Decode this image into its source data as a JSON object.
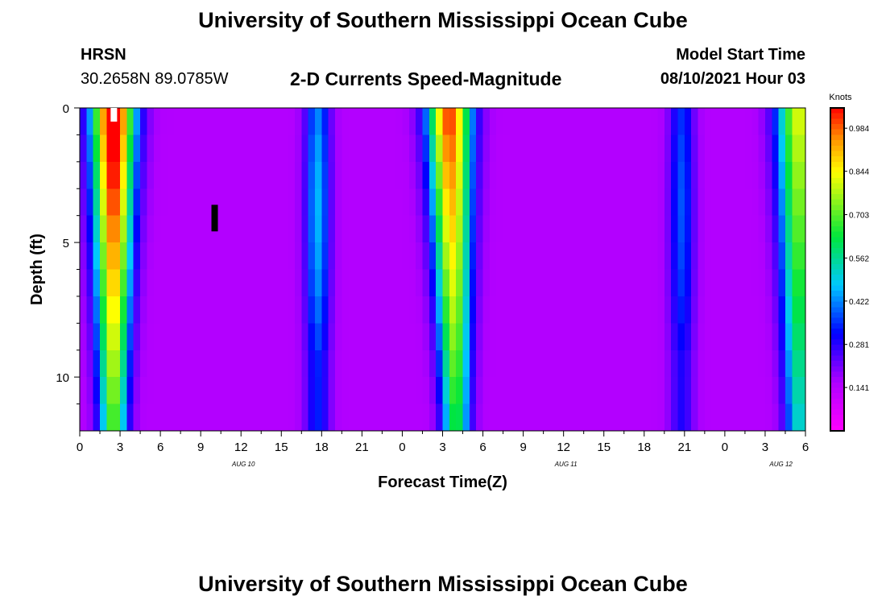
{
  "header": {
    "title_top": "University of Southern Mississippi Ocean Cube",
    "station": "HRSN",
    "location": "30.2658N  89.0785W",
    "chart_title": "2-D Currents Speed-Magnitude",
    "model_label": "Model Start Time",
    "model_time": "08/10/2021 Hour 03"
  },
  "footer": {
    "title_bottom": "University of Southern Mississippi Ocean Cube"
  },
  "chart_data": {
    "type": "heatmap",
    "title": "2-D Currents Speed-Magnitude",
    "xlabel": "Forecast Time(Z)",
    "ylabel": "Depth (ft)",
    "x_ticks": [
      "0",
      "3",
      "6",
      "9",
      "12",
      "15",
      "18",
      "21",
      "0",
      "3",
      "6",
      "9",
      "12",
      "15",
      "18",
      "21",
      "0",
      "3",
      "6"
    ],
    "x_tick_hours": [
      0,
      3,
      6,
      9,
      12,
      15,
      18,
      21,
      24,
      27,
      30,
      33,
      36,
      39,
      42,
      45,
      48,
      51,
      54
    ],
    "date_labels": [
      {
        "text": "AUG  10",
        "hour": 12
      },
      {
        "text": "AUG  11",
        "hour": 36
      },
      {
        "text": "AUG  12",
        "hour": 52
      }
    ],
    "y_ticks": [
      "0",
      "5",
      "10"
    ],
    "y_tick_values": [
      0,
      5,
      10
    ],
    "xlim": [
      0,
      54
    ],
    "ylim": [
      12,
      0
    ],
    "colorbar": {
      "label": "Knots",
      "ticks": [
        "0.984",
        "0.844",
        "0.703",
        "0.562",
        "0.422",
        "0.281",
        "0.141"
      ],
      "tick_values": [
        0.984,
        0.844,
        0.703,
        0.562,
        0.422,
        0.281,
        0.141
      ],
      "range": [
        0,
        1.05
      ]
    },
    "depths_ft": [
      0.5,
      1.5,
      2.5,
      3.5,
      4.5,
      5.5,
      6.5,
      7.5,
      8.5,
      9.5,
      10.5,
      11.5
    ],
    "surface_peaks": [
      {
        "hour": 2.5,
        "peak_knots": 1.0,
        "drift_hours": 0
      },
      {
        "hour": 27.5,
        "peak_knots": 0.88,
        "drift_hours": 0.5
      },
      {
        "hour": 53.5,
        "peak_knots": 0.68,
        "drift_hours": 0
      }
    ],
    "secondary_peaks": [
      {
        "hour": 17.7,
        "peak_knots": 0.46
      },
      {
        "hour": 44.8,
        "peak_knots": 0.38
      }
    ],
    "background_knots": 0.15
  }
}
